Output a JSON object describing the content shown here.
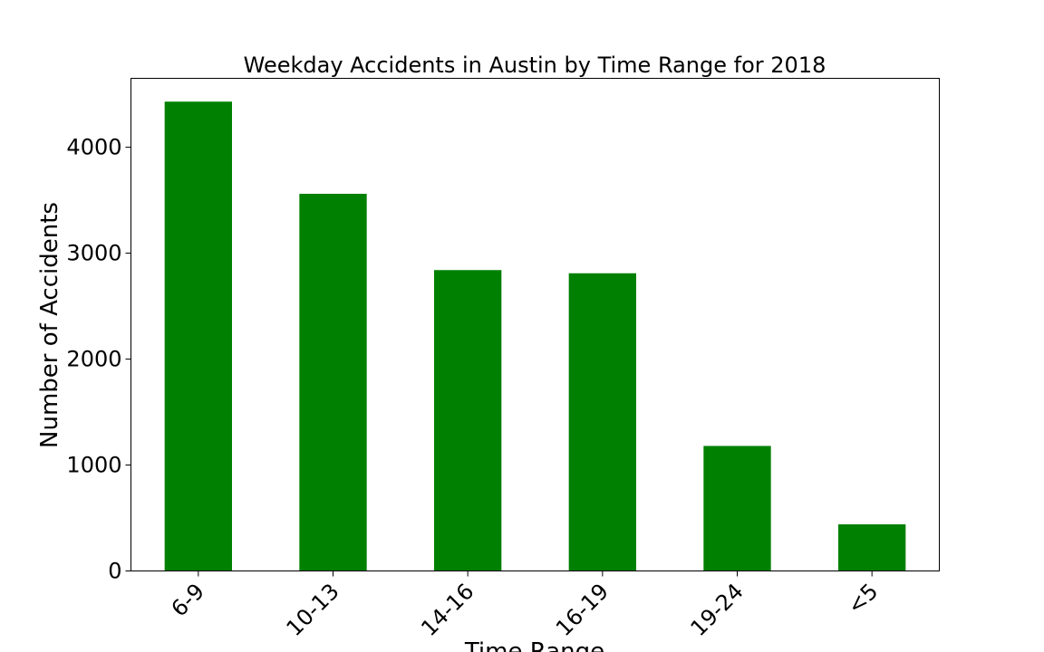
{
  "chart_data": {
    "type": "bar",
    "title": "Weekday Accidents in Austin by Time Range for 2018",
    "xlabel": "Time Range",
    "ylabel": "Number of Accidents",
    "categories": [
      "6-9",
      "10-13",
      "14-16",
      "16-19",
      "19-24",
      "<5"
    ],
    "values": [
      4430,
      3560,
      2840,
      2810,
      1180,
      440
    ],
    "ylim": [
      0,
      4650
    ],
    "yticks": [
      0,
      1000,
      2000,
      3000,
      4000
    ],
    "ytick_labels": [
      "0",
      "1000",
      "2000",
      "3000",
      "4000"
    ],
    "bar_color": "#008000",
    "grid": false,
    "legend": "none"
  }
}
